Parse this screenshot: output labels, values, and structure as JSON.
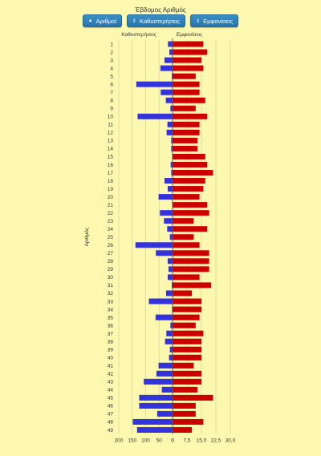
{
  "title": "Έβδομος Αριθμός",
  "controls": {
    "sort_numbers": {
      "label": "Αριθμοί",
      "icon": "▲"
    },
    "sort_delays": {
      "label": "Καθυστερήσεις",
      "icon": "⇕"
    },
    "sort_appearances": {
      "label": "Εμφανίσεις",
      "icon": "⇕"
    }
  },
  "chart_data": {
    "type": "bar",
    "orientation": "horizontal",
    "categories": [
      "1",
      "2",
      "3",
      "4",
      "5",
      "6",
      "7",
      "8",
      "9",
      "10",
      "11",
      "12",
      "13",
      "14",
      "15",
      "16",
      "17",
      "18",
      "19",
      "20",
      "21",
      "22",
      "23",
      "24",
      "25",
      "26",
      "27",
      "28",
      "29",
      "30",
      "31",
      "32",
      "33",
      "34",
      "35",
      "36",
      "37",
      "38",
      "39",
      "40",
      "41",
      "42",
      "43",
      "44",
      "45",
      "46",
      "47",
      "48",
      "49"
    ],
    "ylabel": "Αριθμός",
    "series": [
      {
        "name": "Καθυστερήσεις",
        "color": "#3333dd",
        "axis_ticks": [
          "200",
          "150",
          "100",
          "50",
          "0"
        ],
        "xlim": [
          0,
          200
        ],
        "values": [
          17,
          12,
          30,
          45,
          3,
          135,
          44,
          25,
          8,
          130,
          19,
          22,
          5,
          5,
          0,
          7,
          5,
          30,
          18,
          52,
          0,
          47,
          32,
          20,
          10,
          138,
          62,
          18,
          15,
          18,
          3,
          24,
          88,
          2,
          63,
          8,
          23,
          28,
          10,
          13,
          52,
          60,
          107,
          40,
          124,
          124,
          57,
          148,
          132
        ]
      },
      {
        "name": "Εμφανίσεις",
        "color": "#cc0000",
        "axis_ticks": [
          "0",
          "7,5",
          "15,0",
          "22,5",
          "30,0"
        ],
        "xlim": [
          0,
          30
        ],
        "values": [
          16,
          18,
          15,
          16,
          12,
          14,
          14,
          17,
          12,
          18,
          14,
          14,
          13,
          13,
          17,
          18,
          21,
          17,
          16,
          14,
          18,
          19,
          11,
          18,
          11,
          14,
          19,
          19,
          19,
          14,
          20,
          10,
          15,
          15,
          14,
          12,
          16,
          15,
          15,
          15,
          11,
          15,
          15,
          13,
          21,
          12,
          12,
          16,
          10
        ]
      }
    ]
  }
}
